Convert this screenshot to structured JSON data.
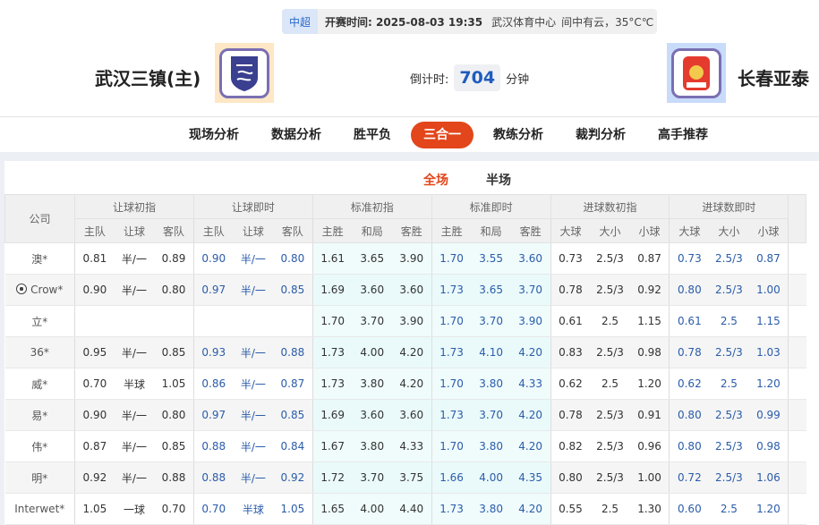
{
  "match": {
    "league": "中超",
    "kickoff_label": "开赛时间:",
    "kickoff": "2025-08-03 19:35",
    "venue": "武汉体育中心",
    "weather": "间中有云，35°C℃"
  },
  "home": {
    "name": "武汉三镇(主)"
  },
  "away": {
    "name": "长春亚泰"
  },
  "countdown": {
    "label": "倒计时:",
    "value": "704",
    "unit": "分钟"
  },
  "nav": [
    "现场分析",
    "数据分析",
    "胜平负",
    "三合一",
    "教练分析",
    "裁判分析",
    "高手推荐"
  ],
  "nav_active": 3,
  "tabs": [
    "全场",
    "半场"
  ],
  "table": {
    "company_header": "公司",
    "groups": [
      "让球初指",
      "让球即时",
      "标准初指",
      "标准即时",
      "进球数初指",
      "进球数即时"
    ],
    "subheaders": [
      "主队",
      "让球",
      "客队",
      "主队",
      "让球",
      "客队",
      "主胜",
      "和局",
      "客胜",
      "主胜",
      "和局",
      "客胜",
      "大球",
      "大小",
      "小球",
      "大球",
      "大小",
      "小球"
    ],
    "rows": [
      {
        "company": "澳*",
        "v": [
          "0.81",
          "半/一",
          "0.89",
          "0.90",
          "半/一",
          "0.80",
          "1.61",
          "3.65",
          "3.90",
          "1.70",
          "3.55",
          "3.60",
          "0.73",
          "2.5/3",
          "0.87",
          "0.73",
          "2.5/3",
          "0.87"
        ]
      },
      {
        "company": "Crow*",
        "icon": "soccer-ball-icon",
        "v": [
          "0.90",
          "半/一",
          "0.80",
          "0.97",
          "半/一",
          "0.85",
          "1.69",
          "3.60",
          "3.60",
          "1.73",
          "3.65",
          "3.70",
          "0.78",
          "2.5/3",
          "0.92",
          "0.80",
          "2.5/3",
          "1.00"
        ]
      },
      {
        "company": "立*",
        "v": [
          "",
          "",
          "",
          "",
          "",
          "",
          "1.70",
          "3.70",
          "3.90",
          "1.70",
          "3.70",
          "3.90",
          "0.61",
          "2.5",
          "1.15",
          "0.61",
          "2.5",
          "1.15"
        ]
      },
      {
        "company": "36*",
        "v": [
          "0.95",
          "半/一",
          "0.85",
          "0.93",
          "半/一",
          "0.88",
          "1.73",
          "4.00",
          "4.20",
          "1.73",
          "4.10",
          "4.20",
          "0.83",
          "2.5/3",
          "0.98",
          "0.78",
          "2.5/3",
          "1.03"
        ]
      },
      {
        "company": "威*",
        "v": [
          "0.70",
          "半球",
          "1.05",
          "0.86",
          "半/一",
          "0.87",
          "1.73",
          "3.80",
          "4.20",
          "1.70",
          "3.80",
          "4.33",
          "0.62",
          "2.5",
          "1.20",
          "0.62",
          "2.5",
          "1.20"
        ]
      },
      {
        "company": "易*",
        "v": [
          "0.90",
          "半/一",
          "0.80",
          "0.97",
          "半/一",
          "0.85",
          "1.69",
          "3.60",
          "3.60",
          "1.73",
          "3.70",
          "4.20",
          "0.78",
          "2.5/3",
          "0.91",
          "0.80",
          "2.5/3",
          "0.99"
        ]
      },
      {
        "company": "伟*",
        "v": [
          "0.87",
          "半/一",
          "0.85",
          "0.88",
          "半/一",
          "0.84",
          "1.67",
          "3.80",
          "4.33",
          "1.70",
          "3.80",
          "4.20",
          "0.82",
          "2.5/3",
          "0.96",
          "0.80",
          "2.5/3",
          "0.98"
        ]
      },
      {
        "company": "明*",
        "v": [
          "0.92",
          "半/一",
          "0.88",
          "0.88",
          "半/一",
          "0.92",
          "1.72",
          "3.70",
          "3.75",
          "1.66",
          "4.00",
          "4.35",
          "0.80",
          "2.5/3",
          "1.00",
          "0.72",
          "2.5/3",
          "1.06"
        ]
      },
      {
        "company": "Interwet*",
        "v": [
          "1.05",
          "一球",
          "0.70",
          "0.70",
          "半球",
          "1.05",
          "1.65",
          "4.00",
          "4.40",
          "1.73",
          "3.80",
          "4.20",
          "0.55",
          "2.5",
          "1.30",
          "0.60",
          "2.5",
          "1.20"
        ]
      }
    ]
  },
  "colors": {
    "accent": "#e2461a",
    "blue": "#2a5caa",
    "countdown": "#1f5bbf"
  }
}
